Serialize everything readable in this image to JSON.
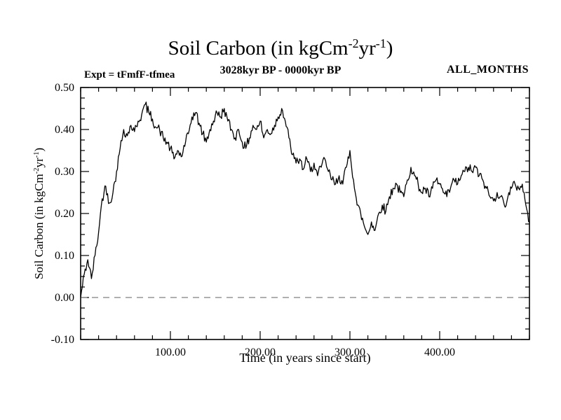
{
  "header": {
    "title": {
      "pre": "Soil Carbon (in kgCm",
      "sup1": "-2",
      "mid": "yr",
      "sup2": "-1",
      "post": ")"
    },
    "subtitle": "3028kyr BP - 0000kyr BP",
    "expt_label": "Expt = tFmfF-tfmea",
    "months_label": "ALL_MONTHS"
  },
  "ylabel_parts": {
    "pre": "Soil Carbon (in kgCm",
    "sup1": "-2",
    "mid": "yr",
    "sup2": "-1",
    "post": ")"
  },
  "chart_data": {
    "type": "line",
    "title": "Soil Carbon (in kgCm-2yr-1)",
    "subtitle": "3028kyr BP - 0000kyr BP",
    "xlabel": "Time (in years since start)",
    "ylabel": "Soil Carbon (in kgCm-2yr-1)",
    "xlim": [
      0,
      500
    ],
    "ylim": [
      -0.1,
      0.5
    ],
    "xticks": [
      100,
      200,
      300,
      400
    ],
    "xtick_labels": [
      "100.00",
      "200.00",
      "300.00",
      "400.00"
    ],
    "yticks": [
      -0.1,
      0.0,
      0.1,
      0.2,
      0.3,
      0.4,
      0.5
    ],
    "ytick_labels": [
      "-0.10",
      "0.00",
      "0.10",
      "0.20",
      "0.30",
      "0.40",
      "0.50"
    ],
    "x_minor_step": 20,
    "y_minor_step": 0.025,
    "grid": false,
    "legend": false,
    "background_color": "#ffffff",
    "axis_color": "#000000",
    "line_color": "#000000",
    "zero_line": {
      "y": 0.0,
      "style": "dashed",
      "color": "#808080"
    },
    "noise_amplitude": 0.012,
    "series": [
      {
        "name": "soil_carbon",
        "x": [
          0,
          4,
          8,
          12,
          16,
          20,
          24,
          28,
          32,
          36,
          40,
          44,
          48,
          52,
          56,
          60,
          64,
          68,
          72,
          76,
          80,
          84,
          88,
          92,
          96,
          100,
          104,
          108,
          112,
          116,
          120,
          124,
          128,
          132,
          136,
          140,
          144,
          148,
          152,
          156,
          160,
          164,
          168,
          172,
          176,
          180,
          184,
          188,
          192,
          196,
          200,
          204,
          208,
          212,
          216,
          220,
          224,
          228,
          232,
          236,
          240,
          244,
          248,
          252,
          256,
          260,
          264,
          268,
          272,
          276,
          280,
          284,
          288,
          292,
          296,
          300,
          304,
          308,
          312,
          316,
          320,
          324,
          328,
          332,
          336,
          340,
          344,
          348,
          352,
          356,
          360,
          364,
          368,
          372,
          376,
          380,
          384,
          388,
          392,
          396,
          400,
          404,
          408,
          412,
          416,
          420,
          424,
          428,
          432,
          436,
          440,
          444,
          448,
          452,
          456,
          460,
          464,
          468,
          472,
          476,
          480,
          484,
          488,
          492,
          496,
          500
        ],
        "values": [
          0.0,
          0.055,
          0.09,
          0.045,
          0.1,
          0.155,
          0.235,
          0.265,
          0.225,
          0.25,
          0.3,
          0.355,
          0.4,
          0.385,
          0.41,
          0.395,
          0.42,
          0.435,
          0.46,
          0.44,
          0.425,
          0.405,
          0.4,
          0.38,
          0.37,
          0.355,
          0.33,
          0.35,
          0.335,
          0.36,
          0.39,
          0.43,
          0.44,
          0.415,
          0.39,
          0.37,
          0.4,
          0.42,
          0.44,
          0.43,
          0.45,
          0.42,
          0.4,
          0.38,
          0.4,
          0.37,
          0.355,
          0.38,
          0.41,
          0.4,
          0.42,
          0.38,
          0.4,
          0.39,
          0.41,
          0.43,
          0.45,
          0.42,
          0.38,
          0.34,
          0.32,
          0.33,
          0.305,
          0.33,
          0.3,
          0.32,
          0.29,
          0.31,
          0.33,
          0.3,
          0.28,
          0.27,
          0.29,
          0.27,
          0.31,
          0.35,
          0.28,
          0.22,
          0.2,
          0.17,
          0.15,
          0.18,
          0.16,
          0.2,
          0.22,
          0.205,
          0.24,
          0.26,
          0.27,
          0.25,
          0.24,
          0.28,
          0.31,
          0.29,
          0.27,
          0.25,
          0.26,
          0.24,
          0.26,
          0.28,
          0.27,
          0.25,
          0.24,
          0.26,
          0.28,
          0.27,
          0.29,
          0.3,
          0.31,
          0.3,
          0.31,
          0.29,
          0.28,
          0.26,
          0.24,
          0.23,
          0.25,
          0.24,
          0.22,
          0.24,
          0.26,
          0.27,
          0.26,
          0.27,
          0.22,
          0.18
        ]
      }
    ]
  }
}
